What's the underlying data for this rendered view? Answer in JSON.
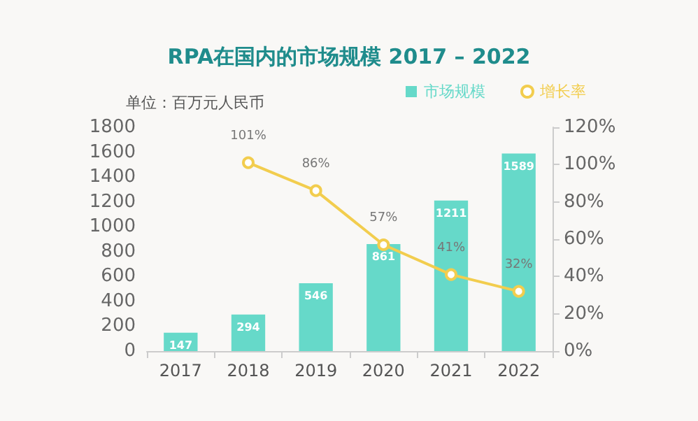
{
  "chart_data": {
    "type": "bar",
    "title": "RPA在国内的市场规模 2017 – 2022",
    "ylabel": "单位：百万元人民币",
    "categories": [
      "2017",
      "2018",
      "2019",
      "2020",
      "2021",
      "2022"
    ],
    "series": [
      {
        "name": "市场规模",
        "color": "#66d9c9",
        "values": [
          147,
          294,
          546,
          861,
          1211,
          1589
        ]
      },
      {
        "name": "增长率",
        "type": "line",
        "axis": "y2",
        "color": "#f2cd4e",
        "marker": "circle",
        "values": [
          null,
          101,
          86,
          57,
          41,
          32
        ],
        "value_labels": [
          null,
          "101%",
          "86%",
          "57%",
          "41%",
          "32%"
        ]
      }
    ],
    "ylim": [
      0,
      1800
    ],
    "yticks": [
      0,
      200,
      400,
      600,
      800,
      1000,
      1200,
      1400,
      1600,
      1800
    ],
    "y2lim": [
      0,
      120
    ],
    "y2ticks": [
      {
        "value": 0,
        "label": "0%"
      },
      {
        "value": 20,
        "label": "20%"
      },
      {
        "value": 40,
        "label": "40%"
      },
      {
        "value": 60,
        "label": "60%"
      },
      {
        "value": 80,
        "label": "80%"
      },
      {
        "value": 100,
        "label": "100%"
      },
      {
        "value": 120,
        "label": "120%"
      }
    ],
    "data_labels": true,
    "grid": false,
    "legend": "top right"
  }
}
